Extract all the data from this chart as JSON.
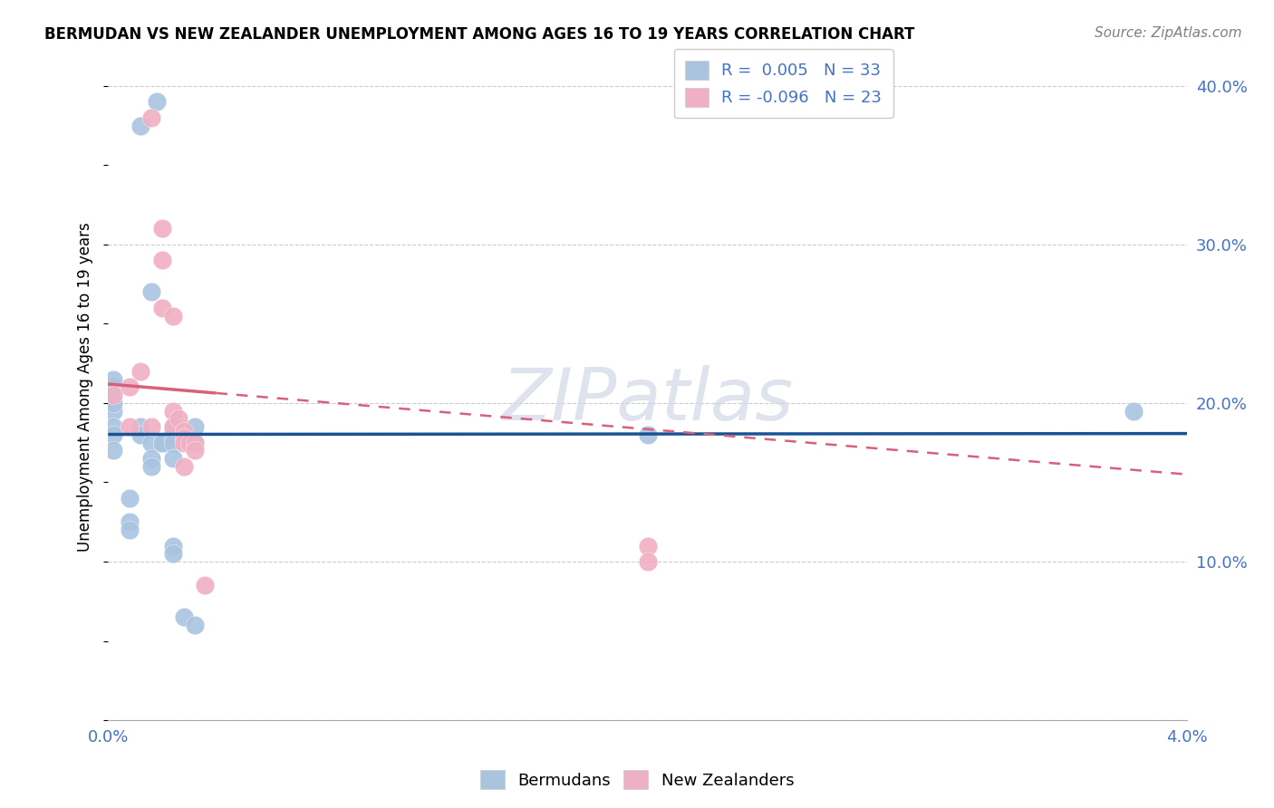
{
  "title": "BERMUDAN VS NEW ZEALANDER UNEMPLOYMENT AMONG AGES 16 TO 19 YEARS CORRELATION CHART",
  "source": "Source: ZipAtlas.com",
  "ylabel": "Unemployment Among Ages 16 to 19 years",
  "xlim": [
    0.0,
    0.04
  ],
  "ylim": [
    0.0,
    0.42
  ],
  "x_ticks": [
    0.0,
    0.004,
    0.008,
    0.012,
    0.016,
    0.02,
    0.024,
    0.028,
    0.032,
    0.036,
    0.04
  ],
  "y_ticks_right": [
    0.0,
    0.1,
    0.2,
    0.3,
    0.4
  ],
  "y_tick_labels_right": [
    "",
    "10.0%",
    "20.0%",
    "30.0%",
    "40.0%"
  ],
  "bermudans_x": [
    0.0002,
    0.0012,
    0.0018,
    0.0002,
    0.0002,
    0.0002,
    0.0002,
    0.0002,
    0.0002,
    0.0008,
    0.0008,
    0.0008,
    0.0012,
    0.0012,
    0.0016,
    0.0016,
    0.0016,
    0.0016,
    0.002,
    0.002,
    0.0024,
    0.0024,
    0.0024,
    0.0024,
    0.0024,
    0.0024,
    0.0024,
    0.0028,
    0.0032,
    0.0032,
    0.0032,
    0.02,
    0.038
  ],
  "bermudans_y": [
    0.195,
    0.375,
    0.39,
    0.21,
    0.215,
    0.2,
    0.185,
    0.18,
    0.17,
    0.14,
    0.125,
    0.12,
    0.185,
    0.18,
    0.27,
    0.175,
    0.165,
    0.16,
    0.175,
    0.175,
    0.185,
    0.182,
    0.178,
    0.175,
    0.165,
    0.11,
    0.105,
    0.065,
    0.185,
    0.175,
    0.06,
    0.18,
    0.195
  ],
  "nz_x": [
    0.0002,
    0.0008,
    0.0008,
    0.0012,
    0.0016,
    0.0016,
    0.002,
    0.002,
    0.002,
    0.0024,
    0.0024,
    0.0024,
    0.0026,
    0.0028,
    0.0028,
    0.0028,
    0.0028,
    0.003,
    0.0032,
    0.0032,
    0.0036,
    0.02,
    0.02
  ],
  "nz_y": [
    0.205,
    0.21,
    0.185,
    0.22,
    0.38,
    0.185,
    0.31,
    0.29,
    0.26,
    0.255,
    0.195,
    0.185,
    0.19,
    0.182,
    0.178,
    0.175,
    0.16,
    0.175,
    0.175,
    0.17,
    0.085,
    0.11,
    0.1
  ],
  "bermudans_R": 0.005,
  "bermudans_N": 33,
  "nz_R": -0.096,
  "nz_N": 23,
  "blue_color": "#aac4e0",
  "pink_color": "#f0b0c4",
  "blue_line_color": "#1a5296",
  "pink_line_color": "#d9607a",
  "watermark_text": "ZIPatlas",
  "grid_color": "#cccccc",
  "tick_color": "#4472c4",
  "title_fontsize": 12,
  "source_fontsize": 11,
  "axis_fontsize": 13,
  "ylabel_fontsize": 12
}
